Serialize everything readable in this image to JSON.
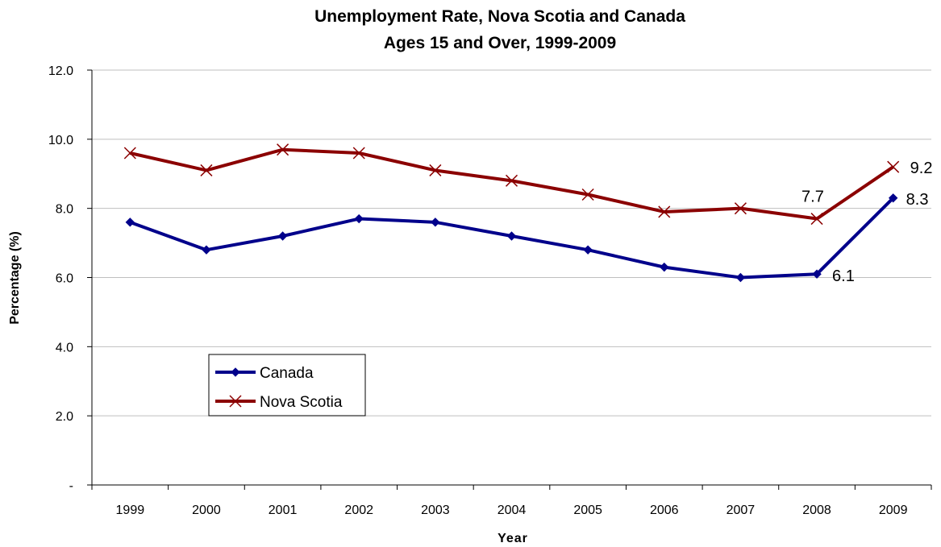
{
  "chart_data": {
    "type": "line",
    "title": [
      "Unemployment Rate, Nova Scotia and Canada",
      "Ages 15 and Over, 1999-2009"
    ],
    "xlabel": "Year",
    "ylabel": "Percentage (%)",
    "categories": [
      "1999",
      "2000",
      "2001",
      "2002",
      "2003",
      "2004",
      "2005",
      "2006",
      "2007",
      "2008",
      "2009"
    ],
    "ylim": [
      0,
      12
    ],
    "yticks": [
      {
        "value": 0,
        "label": "-"
      },
      {
        "value": 2,
        "label": "2.0"
      },
      {
        "value": 4,
        "label": "4.0"
      },
      {
        "value": 6,
        "label": "6.0"
      },
      {
        "value": 8,
        "label": "8.0"
      },
      {
        "value": 10,
        "label": "10.0"
      },
      {
        "value": 12,
        "label": "12.0"
      }
    ],
    "grid": "horizontal",
    "legend_position": "left-middle",
    "series": [
      {
        "name": "Canada",
        "marker": "diamond",
        "color": "#00008B",
        "values": [
          7.6,
          6.8,
          7.2,
          7.7,
          7.6,
          7.2,
          6.8,
          6.3,
          6.0,
          6.1,
          8.3
        ],
        "data_labels": [
          {
            "index": 9,
            "text": "6.1"
          },
          {
            "index": 10,
            "text": "8.3"
          }
        ]
      },
      {
        "name": "Nova Scotia",
        "marker": "x",
        "color": "#8B0000",
        "values": [
          9.6,
          9.1,
          9.7,
          9.6,
          9.1,
          8.8,
          8.4,
          7.9,
          8.0,
          7.7,
          9.2
        ],
        "data_labels": [
          {
            "index": 9,
            "text": "7.7"
          },
          {
            "index": 10,
            "text": "9.2"
          }
        ]
      }
    ]
  }
}
